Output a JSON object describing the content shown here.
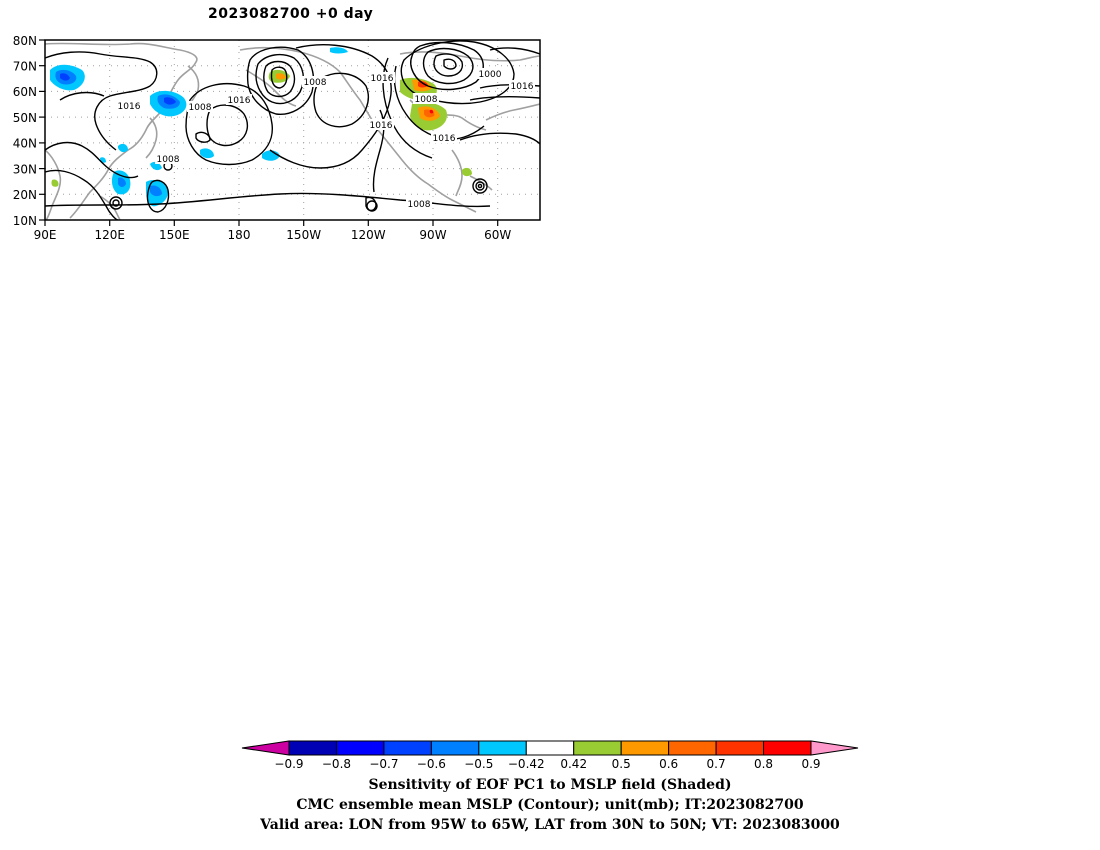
{
  "title": "2023082700 +0 day",
  "map": {
    "lat_labels": [
      "80N",
      "70N",
      "60N",
      "50N",
      "40N",
      "30N",
      "20N",
      "10N"
    ],
    "lon_labels": [
      "90E",
      "120E",
      "150E",
      "180",
      "150W",
      "120W",
      "90W",
      "60W"
    ],
    "contour_labels": [
      "1008",
      "1016",
      "1016",
      "1008",
      "1016",
      "1008",
      "1000",
      "1016",
      "1008",
      "1016",
      "1016",
      "1008",
      "1008"
    ],
    "colors": {
      "contour": "#000000",
      "coastline": "#a0a0a0",
      "grid": "#a0a0a0"
    }
  },
  "colorbar": {
    "tick_labels": [
      "-0.9",
      "-0.8",
      "-0.7",
      "-0.6",
      "-0.5",
      "-0.42",
      "0.42",
      "0.5",
      "0.6",
      "0.7",
      "0.8",
      "0.9"
    ],
    "colors": [
      "#cc00a0",
      "#0000b4",
      "#0000ff",
      "#0041ff",
      "#0080ff",
      "#00c8ff",
      "#ffffff",
      "#99cc33",
      "#ff9900",
      "#ff6600",
      "#ff3300",
      "#ff0000",
      "#ff99cc"
    ]
  },
  "captions": [
    "Sensitivity of EOF PC1 to MSLP field (Shaded)",
    "CMC ensemble mean MSLP (Contour); unit(mb); IT:2023082700",
    "Valid area: LON from 95W to 65W, LAT from 30N to 50N; VT: 2023083000"
  ]
}
